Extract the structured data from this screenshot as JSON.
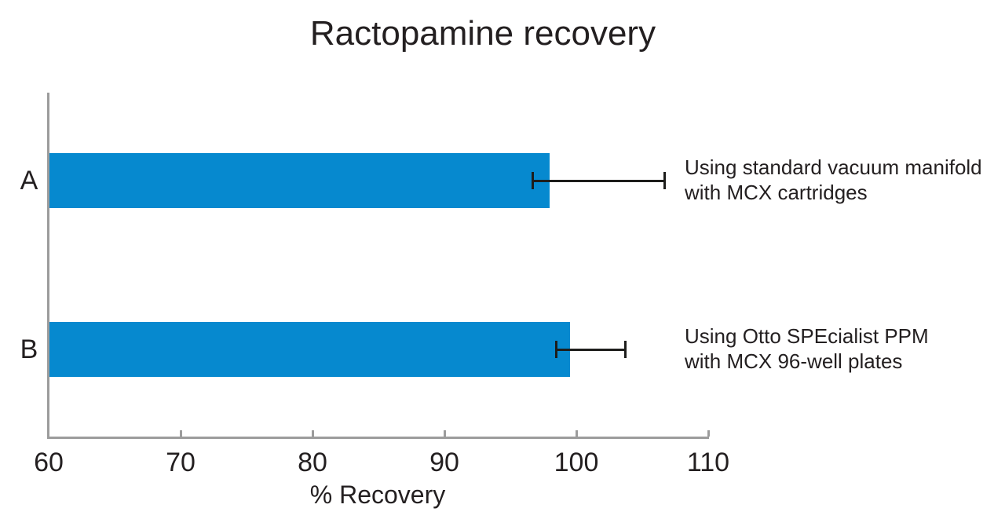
{
  "chart_data": {
    "type": "bar",
    "orientation": "horizontal",
    "title": "Ractopamine recovery",
    "xlabel": "% Recovery",
    "xlim": [
      60,
      110
    ],
    "xticks": [
      60,
      70,
      80,
      90,
      100,
      110
    ],
    "grid": false,
    "legend": "none",
    "categories": [
      "A",
      "B"
    ],
    "values": [
      98,
      99.5
    ],
    "error_bars": [
      {
        "from": 96.7,
        "to": 106.7
      },
      {
        "from": 98.5,
        "to": 103.7
      }
    ],
    "annotations": [
      [
        "Using standard vacuum manifold",
        "with MCX cartridges"
      ],
      [
        "Using Otto SPEcialist PPM",
        "with MCX 96-well plates"
      ]
    ],
    "colors": {
      "bar": "#0689cf",
      "axis": "#9c9c9c",
      "error_bar": "#1d1d1b",
      "text": "#231f20",
      "background": "#ffffff"
    }
  }
}
